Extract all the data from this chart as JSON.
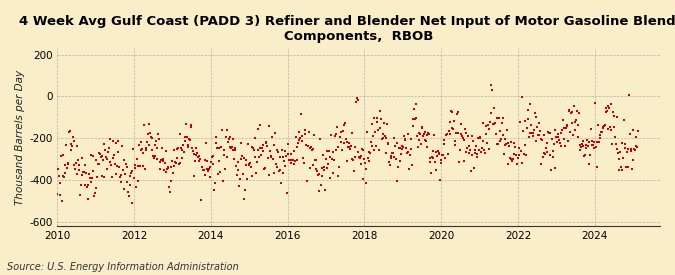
{
  "title": "4 Week Avg Gulf Coast (PADD 3) Refiner and Blender Net Input of Motor Gasoline Blending\nComponents,  RBOB",
  "ylabel": "Thousand Barrels per Day",
  "source": "Source: U.S. Energy Information Administration",
  "xlim": [
    2010.0,
    2025.7
  ],
  "ylim": [
    -620,
    230
  ],
  "yticks": [
    -600,
    -400,
    -200,
    0,
    200
  ],
  "xticks": [
    2010,
    2012,
    2014,
    2016,
    2018,
    2020,
    2022,
    2024
  ],
  "dot_color": "#cc0000",
  "bg_color": "#faeeca",
  "grid_color": "#999999",
  "title_fontsize": 9.5,
  "ylabel_fontsize": 7.5,
  "tick_fontsize": 7.5,
  "source_fontsize": 7.0
}
